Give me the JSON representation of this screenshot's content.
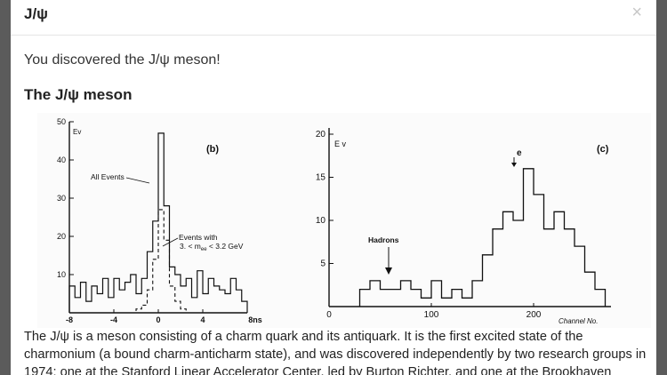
{
  "modal": {
    "title": "J/ψ",
    "close_glyph": "×",
    "message": "You discovered the J/ψ meson!",
    "section_heading": "The J/ψ meson",
    "description": "The J/ψ is a meson consisting of a charm quark and its antiquark. It is the first excited state of the charmonium (a bound charm-anticharm state), and was discovered independently by two research groups in 1974: one at the Stanford Linear Accelerator Center, led by Burton Richter, and one at the Brookhaven"
  },
  "colors": {
    "overlay": "#5b5b5b",
    "close_icon": "#c8c8c8",
    "ink": "#111111"
  },
  "chart_data": [
    {
      "type": "line",
      "panel_label": "(b)",
      "ylabel": "Ev",
      "xlabel": "ns",
      "xlim": [
        -8,
        8
      ],
      "ylim": [
        0,
        50
      ],
      "x_ticks": [
        "-8",
        "-4",
        "0",
        "4",
        "8ns"
      ],
      "y_ticks": [
        "50",
        "40",
        "30",
        "20",
        "10"
      ],
      "annotations": [
        "All Events",
        "Events with",
        "3. < m",
        "ee",
        " < 3.2 GeV"
      ],
      "bin_edges": [
        -8,
        -7.5,
        -7,
        -6.5,
        -6,
        -5.5,
        -5,
        -4.5,
        -4,
        -3.5,
        -3,
        -2.5,
        -2,
        -1.5,
        -1,
        -0.5,
        0,
        0.5,
        1,
        1.5,
        2,
        2.5,
        3,
        3.5,
        4,
        4.5,
        5,
        5.5,
        6,
        6.5,
        7,
        7.5,
        8
      ],
      "series": [
        {
          "name": "All Events",
          "style": "solid",
          "values": [
            7,
            4,
            8,
            3,
            7,
            5,
            9,
            4,
            9,
            6,
            8,
            10,
            5,
            9,
            16,
            24,
            47,
            28,
            12,
            10,
            7,
            9,
            4,
            11,
            5,
            9,
            7,
            6,
            5,
            9,
            6,
            3
          ]
        },
        {
          "name": "Events with",
          "style": "dashed",
          "values": [
            0,
            0,
            0,
            0,
            0,
            0,
            0,
            0,
            0,
            0,
            0,
            0,
            1,
            2,
            6,
            14,
            27,
            19,
            7,
            3,
            1,
            0,
            0,
            0,
            0,
            0,
            0,
            0,
            0,
            0,
            0,
            0
          ]
        }
      ]
    },
    {
      "type": "line",
      "panel_label": "(c)",
      "ylabel": "E v",
      "xlabel": "Channel No.",
      "xlim": [
        0,
        280
      ],
      "ylim": [
        0,
        20
      ],
      "x_ticks": [
        "0",
        "100",
        "200"
      ],
      "y_ticks": [
        "20",
        "15",
        "10",
        "5"
      ],
      "annotations": [
        "Hadrons",
        "e"
      ],
      "bin_edges": [
        30,
        40,
        50,
        60,
        70,
        80,
        90,
        100,
        110,
        120,
        130,
        140,
        150,
        160,
        170,
        180,
        190,
        200,
        210,
        220,
        230,
        240,
        250,
        260,
        270
      ],
      "series": [
        {
          "name": "Hadrons",
          "style": "solid",
          "values": [
            2,
            3,
            2,
            2,
            3,
            2,
            1,
            3,
            1,
            2,
            1,
            3,
            6,
            9,
            11,
            10,
            16,
            13,
            9,
            11,
            9,
            7,
            4,
            2
          ]
        }
      ]
    }
  ]
}
